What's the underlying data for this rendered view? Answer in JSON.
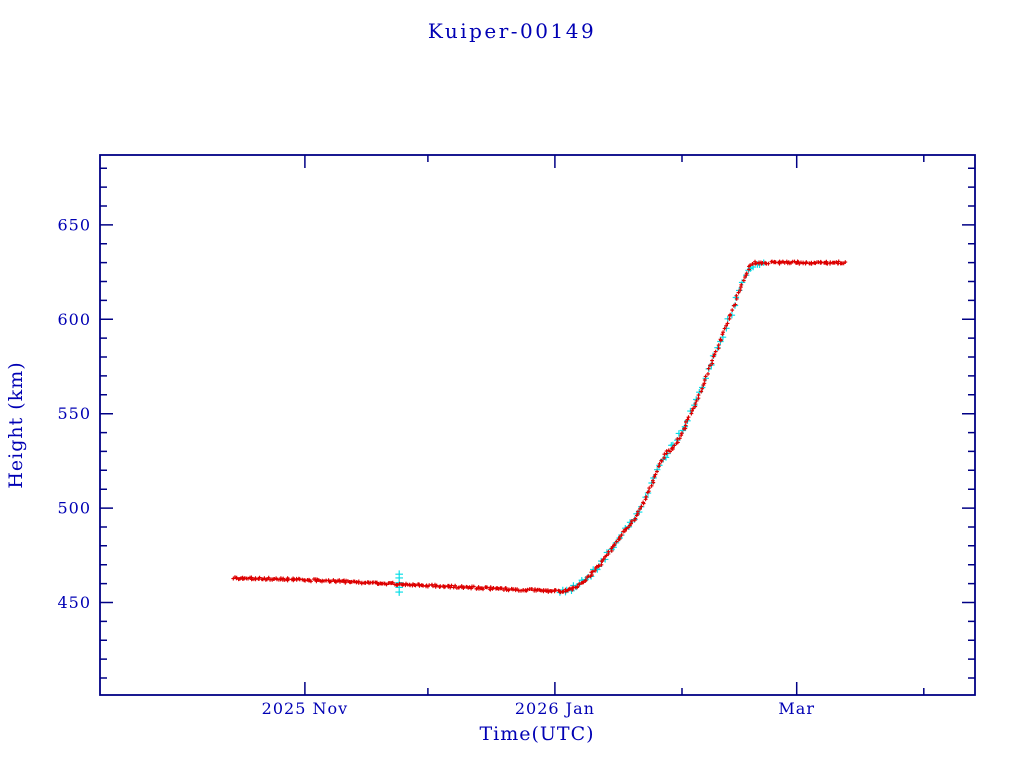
{
  "chart_data": {
    "type": "scatter",
    "title": "Kuiper-00149",
    "xlabel": "Time(UTC)",
    "ylabel": "Height (km)",
    "x_unit_note": "days along time axis; tick day 50 = 2025 Nov, day 111 = 2026 Jan, day 170 = Mar",
    "xlim": [
      0,
      213.5
    ],
    "ylim": [
      401,
      687
    ],
    "grid": false,
    "legend": "none",
    "x_ticks": [
      {
        "day": 50,
        "label": "2025 Nov",
        "major": true
      },
      {
        "day": 80,
        "label": "",
        "major": false
      },
      {
        "day": 111,
        "label": "2026 Jan",
        "major": true
      },
      {
        "day": 142,
        "label": "",
        "major": false
      },
      {
        "day": 170,
        "label": "Mar",
        "major": true
      },
      {
        "day": 201,
        "label": "",
        "major": false
      }
    ],
    "y_ticks_major": [
      450,
      500,
      550,
      600,
      650
    ],
    "y_minor_step": 10,
    "colors": {
      "background": "#ffffff",
      "axis": "#000085",
      "text": "#0000b4",
      "series_red": "#dd0000",
      "series_cyan": "#00dde6"
    },
    "series": [
      {
        "name": "cyan-underlay",
        "color_key": "series_cyan",
        "marker": "cross",
        "marker_size": 3.2,
        "step_days": 0.7,
        "jitter_km": 1.4,
        "seed": 7,
        "range_days": [
          112,
          162
        ],
        "anchors": [
          [
            112,
            456
          ],
          [
            116,
            458
          ],
          [
            120,
            465.5
          ],
          [
            124,
            476
          ],
          [
            128,
            488
          ],
          [
            132,
            500
          ],
          [
            136,
            521
          ],
          [
            139,
            531
          ],
          [
            143,
            544
          ],
          [
            147,
            565
          ],
          [
            151,
            587
          ],
          [
            155,
            608
          ],
          [
            158,
            625
          ],
          [
            160,
            630
          ],
          [
            162,
            630
          ]
        ],
        "extra_points": [
          [
            73,
            455.5
          ],
          [
            73,
            458
          ],
          [
            73,
            460.5
          ],
          [
            73,
            463
          ],
          [
            73,
            465
          ]
        ]
      },
      {
        "name": "red-track",
        "color_key": "series_red",
        "marker": "cross",
        "marker_size": 1.9,
        "step_days": 0.3,
        "jitter_km": 0.65,
        "seed": 3,
        "range_days": [
          32.5,
          182
        ],
        "anchors": [
          [
            32.5,
            463
          ],
          [
            40,
            462.6
          ],
          [
            50,
            462
          ],
          [
            60,
            461
          ],
          [
            70,
            460
          ],
          [
            80,
            459
          ],
          [
            90,
            458
          ],
          [
            100,
            457
          ],
          [
            107,
            456.4
          ],
          [
            112,
            456
          ],
          [
            114,
            456.3
          ],
          [
            116,
            458
          ],
          [
            118,
            461
          ],
          [
            120,
            465.5
          ],
          [
            122,
            470
          ],
          [
            124,
            476
          ],
          [
            126,
            482
          ],
          [
            127.5,
            487
          ],
          [
            129,
            490
          ],
          [
            131,
            496
          ],
          [
            133,
            505
          ],
          [
            135,
            514
          ],
          [
            136.5,
            523
          ],
          [
            138,
            529
          ],
          [
            140,
            532
          ],
          [
            142,
            540
          ],
          [
            144,
            549
          ],
          [
            146,
            559
          ],
          [
            148,
            570
          ],
          [
            150,
            581
          ],
          [
            152,
            592
          ],
          [
            154,
            603
          ],
          [
            156,
            615
          ],
          [
            157.5,
            623
          ],
          [
            158.5,
            628
          ],
          [
            160,
            630
          ],
          [
            182,
            630
          ]
        ],
        "extra_points": []
      }
    ]
  }
}
